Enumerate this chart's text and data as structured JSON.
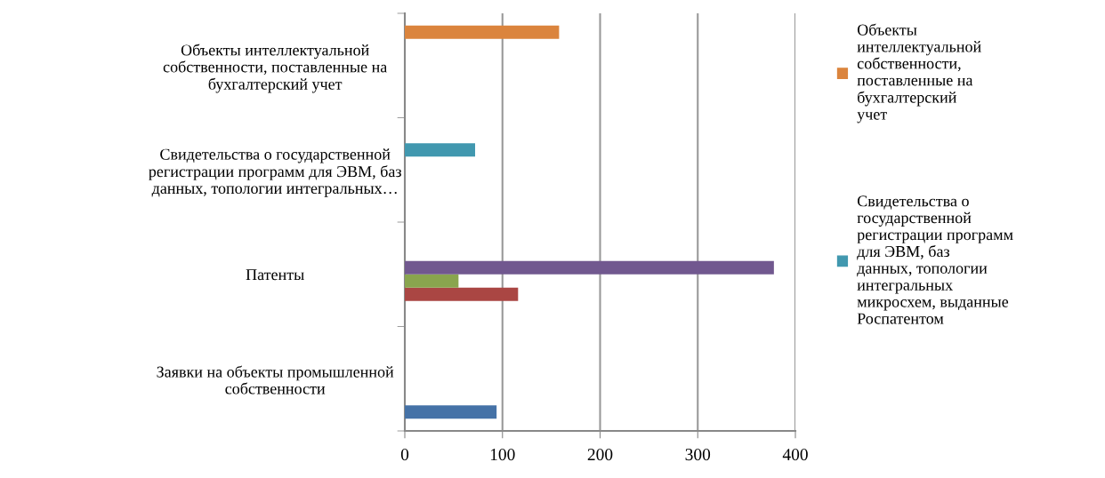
{
  "chart_data": {
    "type": "bar",
    "orientation": "horizontal",
    "categories": [
      "Объекты интеллектуальной\nсобственности, поставленные на\nбухгалтерский учет",
      "Свидетельства о государственной\nрегистрации программ для ЭВМ, баз\nданных, топологии интегральных…",
      "Патенты",
      "Заявки на объекты промышленной\nсобственности"
    ],
    "series": [
      {
        "color": "#4572a7",
        "values": [
          null,
          null,
          null,
          94
        ]
      },
      {
        "color": "#aa4643",
        "values": [
          null,
          null,
          116,
          null
        ]
      },
      {
        "color": "#89a54e",
        "values": [
          null,
          null,
          55,
          null
        ]
      },
      {
        "color": "#71588f",
        "values": [
          null,
          null,
          378,
          null
        ]
      },
      {
        "name": "Свидетельства о\nгосударственной\nрегистрации программ\nдля ЭВМ, баз\nданных, топологии\nинтегральных\nмикросхем, выданные\nРоспатентом",
        "color": "#4198af",
        "values": [
          null,
          72,
          null,
          null
        ]
      },
      {
        "name": "Объекты\nинтеллектуальной\nсобственности,\nпоставленные на\nбухгалтерский\nучет",
        "color": "#db843d",
        "values": [
          158,
          null,
          null,
          null
        ]
      }
    ],
    "xlim": [
      0,
      400
    ],
    "xticks": [
      0,
      100,
      200,
      300,
      400
    ],
    "grid": "x",
    "legend": "right"
  }
}
